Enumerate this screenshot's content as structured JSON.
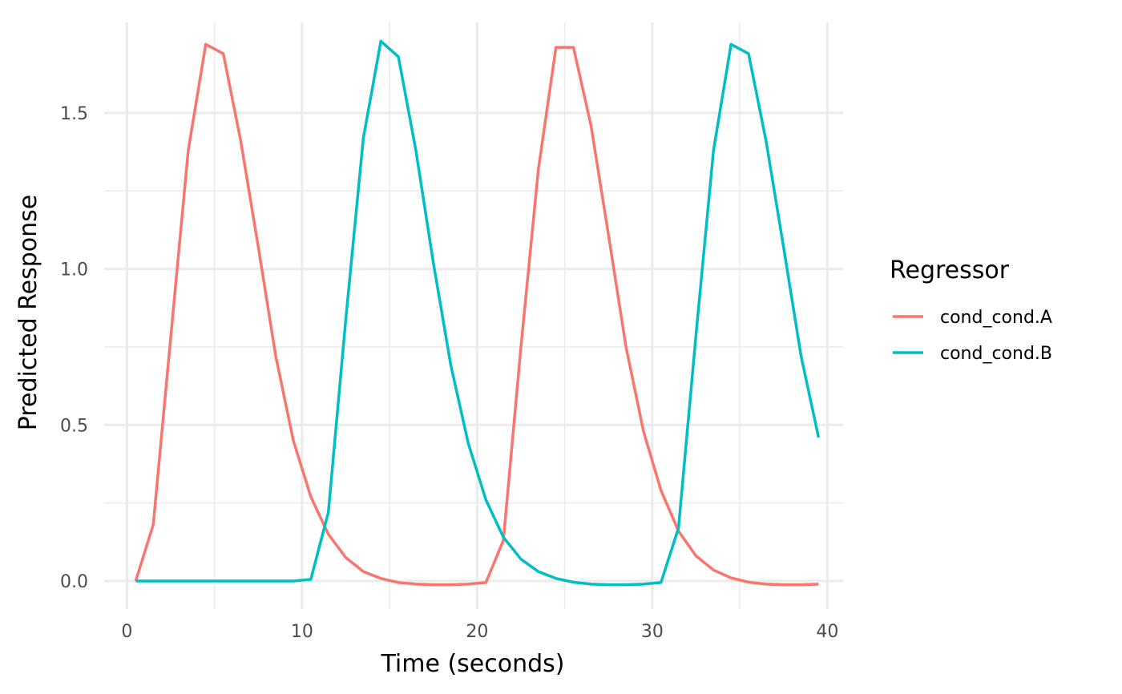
{
  "chart_data": {
    "type": "line",
    "title": "",
    "xlabel": "Time (seconds)",
    "ylabel": "Predicted Response",
    "xlim": [
      -1.3,
      40.9
    ],
    "ylim": [
      -0.09,
      1.79
    ],
    "x_ticks": [
      0,
      10,
      20,
      30,
      40
    ],
    "x_tick_labels": [
      "0",
      "10",
      "20",
      "30",
      "40"
    ],
    "x_minor_ticks": [
      5,
      15,
      25,
      35
    ],
    "y_ticks": [
      0,
      0.5,
      1.0,
      1.5
    ],
    "y_tick_labels": [
      "0.0",
      "0.5",
      "1.0",
      "1.5"
    ],
    "y_minor_ticks": [
      0.25,
      0.75,
      1.25
    ],
    "grid": true,
    "legend": {
      "title": "Regressor",
      "position": "right"
    },
    "x": [
      0.5,
      1.5,
      2.5,
      3.5,
      4.5,
      5.5,
      6.5,
      7.5,
      8.5,
      9.5,
      10.5,
      11.5,
      12.5,
      13.5,
      14.5,
      15.5,
      16.5,
      17.5,
      18.5,
      19.5,
      20.5,
      21.5,
      22.5,
      23.5,
      24.5,
      25.5,
      26.5,
      27.5,
      28.5,
      29.5,
      30.5,
      31.5,
      32.5,
      33.5,
      34.5,
      35.5,
      36.5,
      37.5,
      38.5,
      39.5
    ],
    "series": [
      {
        "name": "cond_cond.A",
        "color": "#F8766D",
        "values": [
          0.0,
          0.18,
          0.78,
          1.38,
          1.72,
          1.69,
          1.41,
          1.07,
          0.72,
          0.45,
          0.27,
          0.15,
          0.075,
          0.03,
          0.008,
          -0.005,
          -0.01,
          -0.012,
          -0.012,
          -0.01,
          -0.005,
          0.13,
          0.75,
          1.32,
          1.71,
          1.71,
          1.46,
          1.11,
          0.75,
          0.48,
          0.29,
          0.16,
          0.08,
          0.035,
          0.01,
          -0.004,
          -0.01,
          -0.012,
          -0.012,
          -0.01
        ]
      },
      {
        "name": "cond_cond.B",
        "color": "#00BFC4",
        "values": [
          0.0,
          0.0,
          0.0,
          0.0,
          0.0,
          0.0,
          0.0,
          0.0,
          0.0,
          0.0,
          0.005,
          0.22,
          0.84,
          1.42,
          1.73,
          1.68,
          1.38,
          1.02,
          0.69,
          0.44,
          0.26,
          0.14,
          0.07,
          0.03,
          0.008,
          -0.004,
          -0.01,
          -0.012,
          -0.012,
          -0.01,
          -0.005,
          0.17,
          0.79,
          1.38,
          1.72,
          1.69,
          1.41,
          1.07,
          0.72,
          0.46
        ]
      }
    ]
  }
}
